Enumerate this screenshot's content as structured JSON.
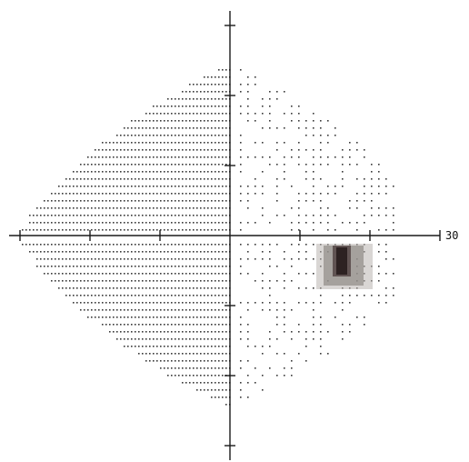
{
  "plot": {
    "type": "visual-field-grayscale",
    "axis_label_right": "30",
    "ink_color": "#1a1a1a",
    "shade_colors": {
      "light": "#b9b5b0",
      "medium": "#8e8a86",
      "dark": "#5a4b4b",
      "darkest": "#2a2020"
    },
    "blind_spot_level": "darkest",
    "x_range_deg": [
      -30,
      30
    ],
    "y_range_deg": [
      -30,
      30
    ]
  }
}
